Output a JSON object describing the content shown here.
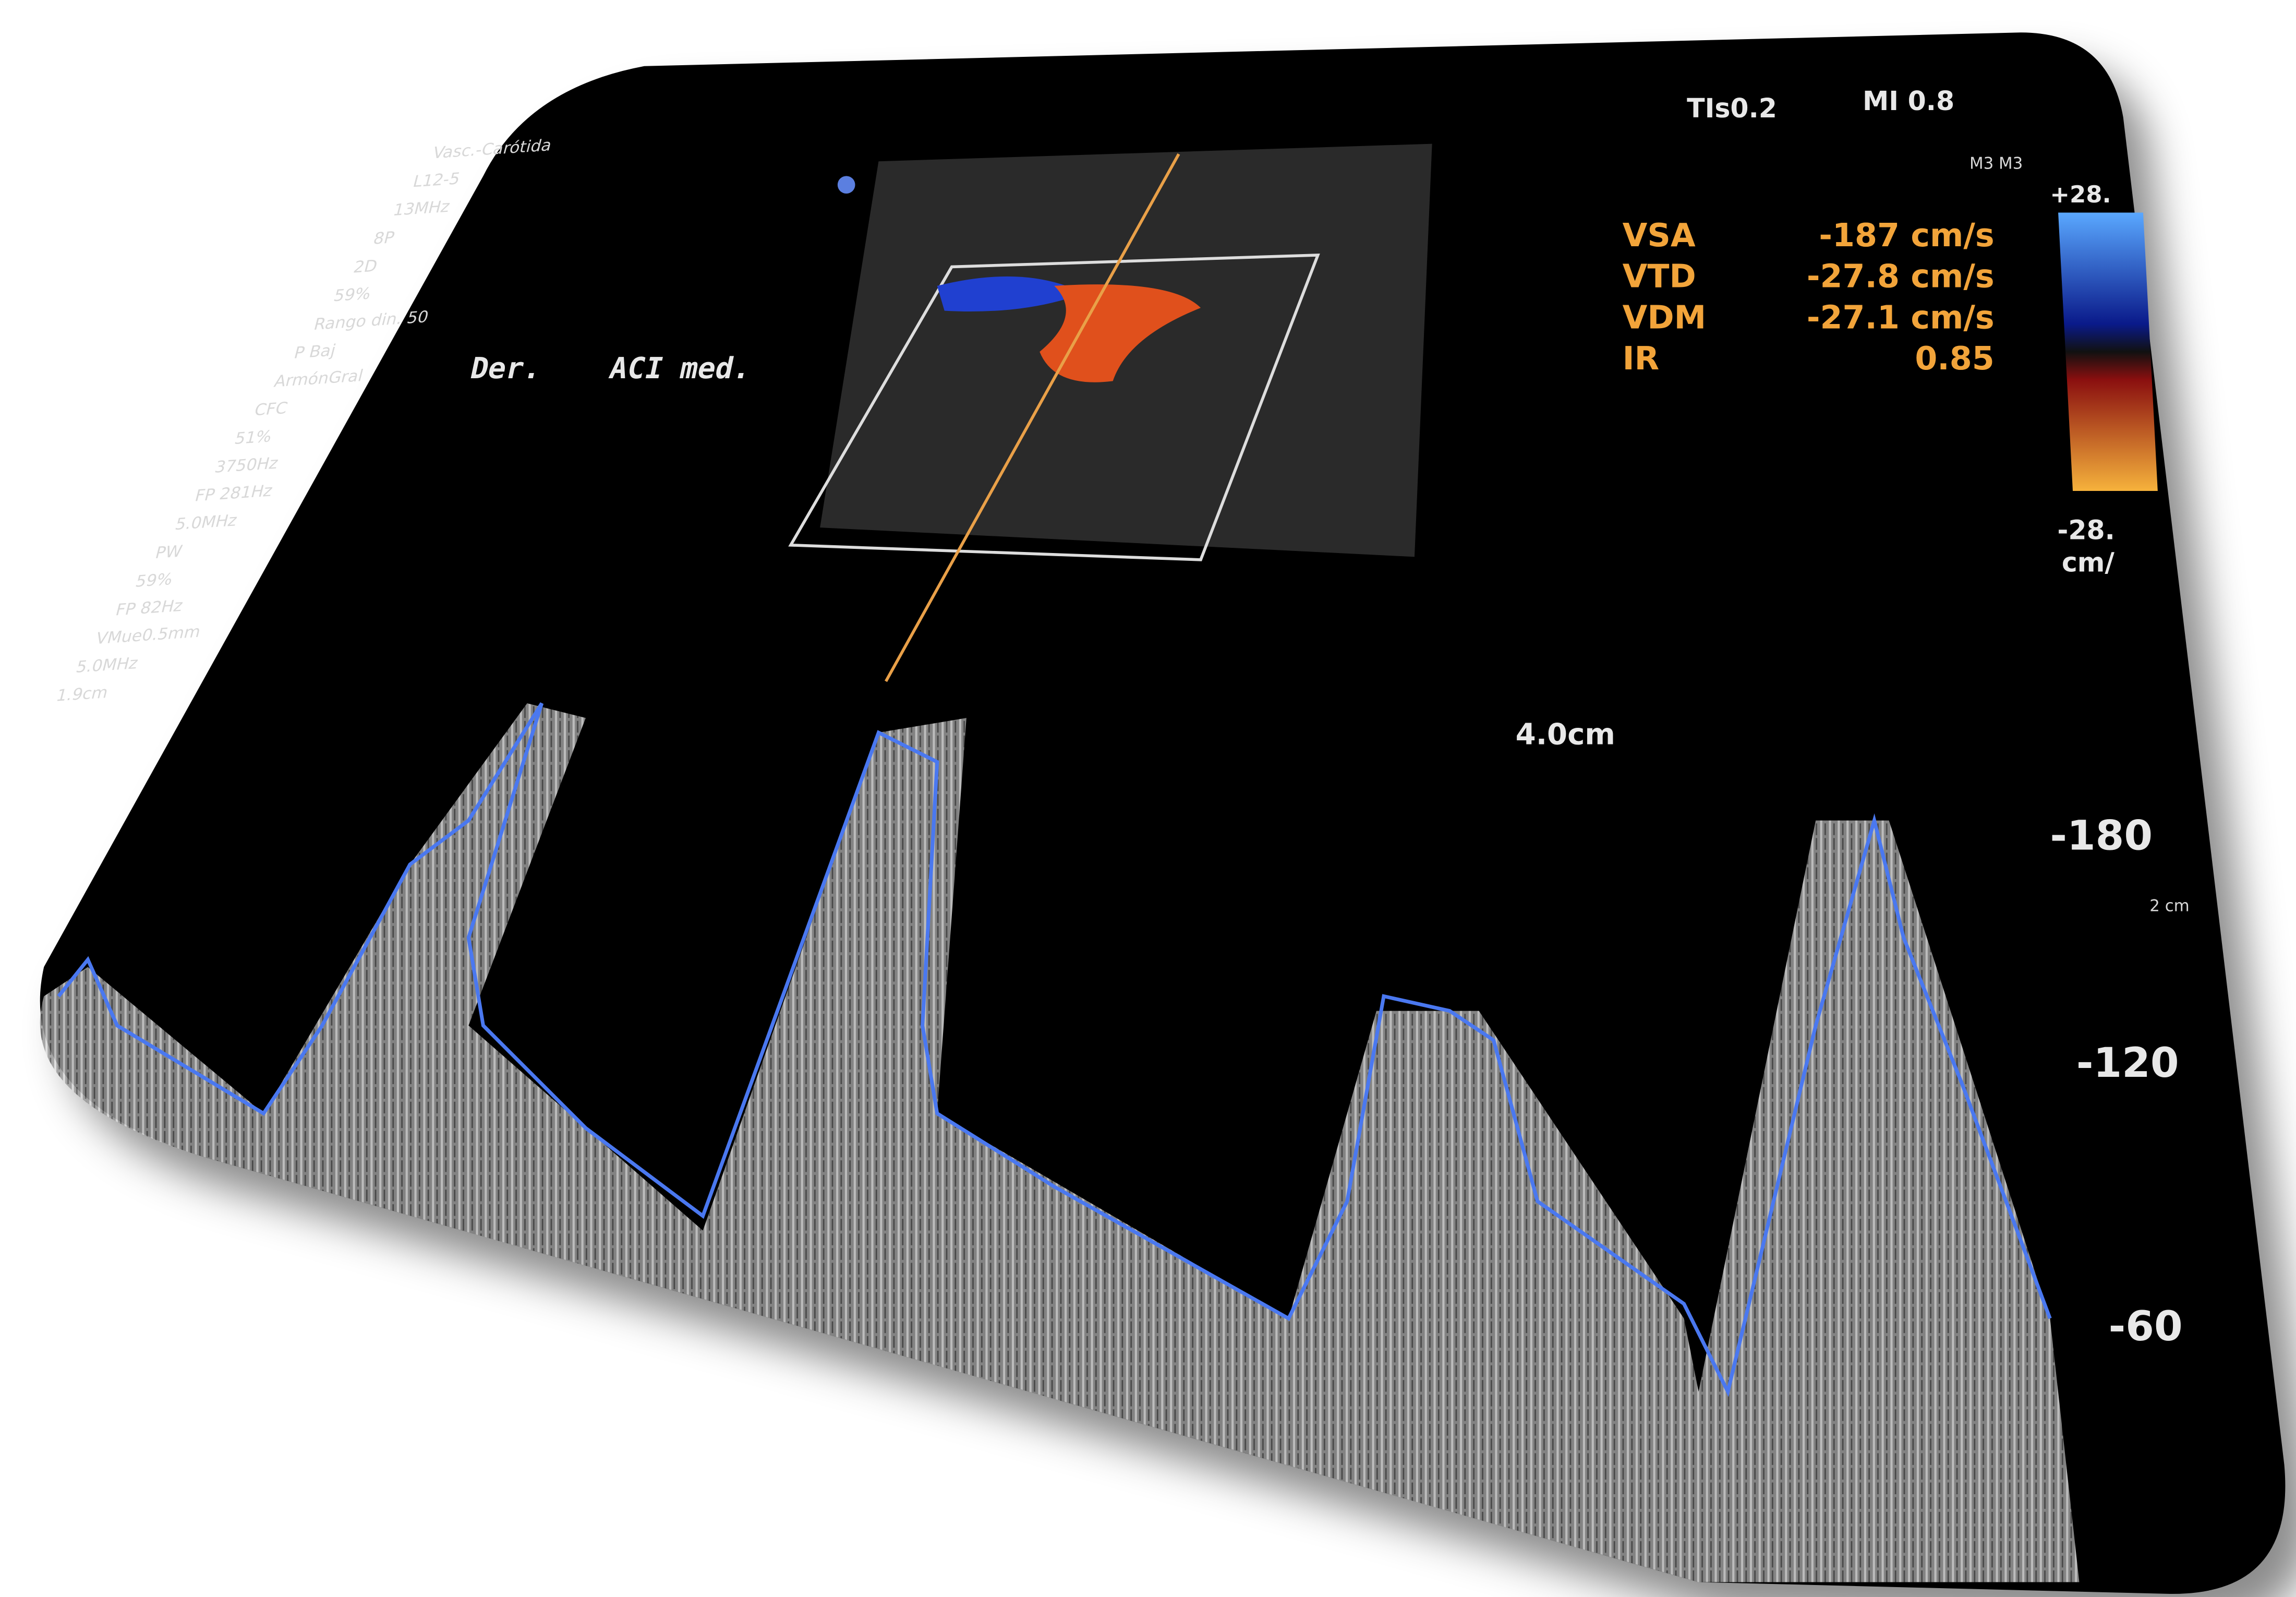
{
  "header": {
    "tis": "TIs0.2",
    "mi": "MI 0.8"
  },
  "left_panel": {
    "lines": [
      "Vasc.-Carótida",
      "L12-5",
      "13MHz",
      "8P",
      "2D",
      "59%",
      "Rango din. 50",
      "P Baj",
      "ArmónGral",
      "CFC",
      "51%",
      "3750Hz",
      "FP 281Hz",
      "5.0MHz",
      "PW",
      "59%",
      "FP 82Hz",
      "VMue0.5mm",
      "5.0MHz",
      "1.9cm"
    ]
  },
  "image_label": {
    "side": "Der.",
    "vessel": "ACI med."
  },
  "measurements": [
    {
      "name": "VSA",
      "value": "-187 cm/s"
    },
    {
      "name": "VTD",
      "value": "-27.8 cm/s"
    },
    {
      "name": "VDM",
      "value": "-27.1 cm/s"
    },
    {
      "name": "IR",
      "value": "0.85"
    }
  ],
  "color_bar": {
    "mode": "M3 M3",
    "top": "+28.",
    "bottom": "-28.",
    "unit": "cm/"
  },
  "depth": "4.0cm",
  "spectral": {
    "scale_labels": [
      "-180",
      "-120",
      "-60"
    ],
    "sweep": "2 cm"
  }
}
